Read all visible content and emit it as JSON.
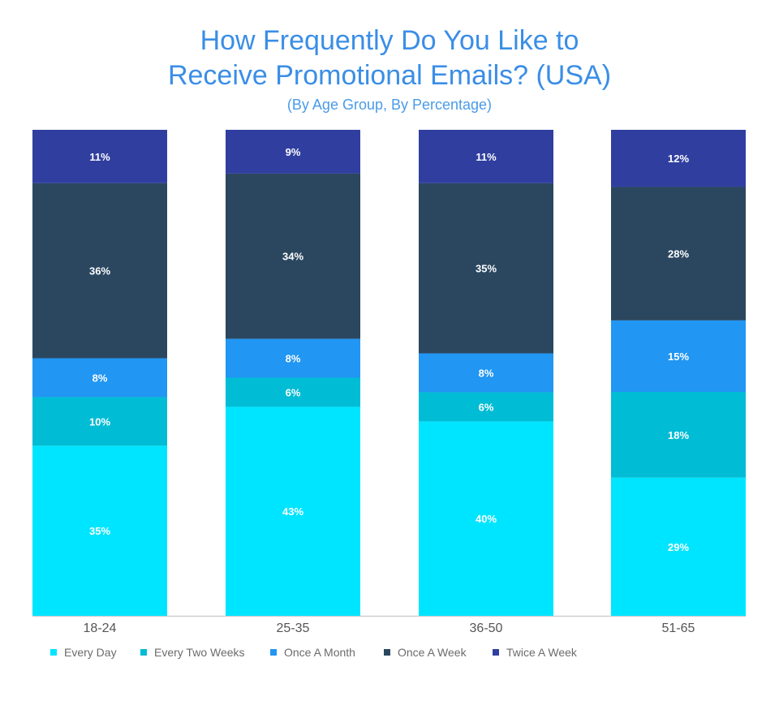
{
  "chart_data": {
    "type": "bar",
    "stacked": true,
    "title": "How Frequently Do You Like to Receive Promotional Emails? (USA)",
    "title_lines": [
      "How Frequently Do You Like to",
      "Receive Promotional Emails? (USA)"
    ],
    "subtitle": "(By Age Group, By Percentage)",
    "xlabel": "",
    "ylabel": "",
    "categories": [
      "18-24",
      "25-35",
      "36-50",
      "51-65"
    ],
    "series": [
      {
        "name": "Every Day",
        "color": "#00e5ff",
        "values": [
          35,
          43,
          40,
          29
        ]
      },
      {
        "name": "Every Two Weeks",
        "color": "#00bcd4",
        "values": [
          10,
          6,
          6,
          18
        ]
      },
      {
        "name": "Once A Month",
        "color": "#2196f3",
        "values": [
          8,
          8,
          8,
          15
        ]
      },
      {
        "name": "Once A Week",
        "color": "#2b4760",
        "values": [
          36,
          34,
          35,
          28
        ]
      },
      {
        "name": "Twice A Week",
        "color": "#303f9f",
        "values": [
          11,
          9,
          11,
          12
        ]
      }
    ],
    "value_suffix": "%",
    "legend_position": "bottom-left",
    "grid": false
  }
}
